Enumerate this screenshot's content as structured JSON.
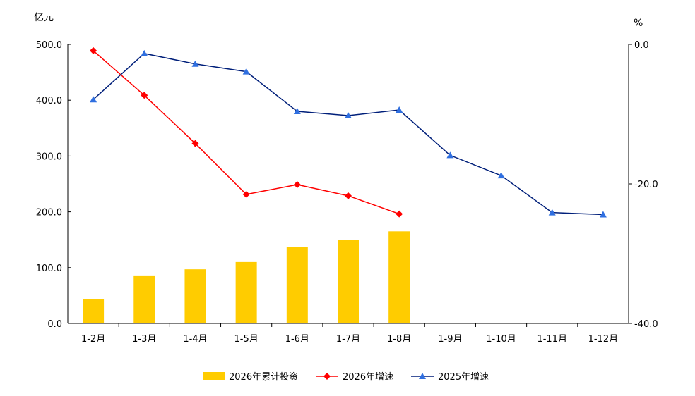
{
  "chart_data": {
    "type": "bar",
    "categories": [
      "1-2月",
      "1-3月",
      "1-4月",
      "1-5月",
      "1-6月",
      "1-7月",
      "1-8月",
      "1-9月",
      "1-10月",
      "1-11月",
      "1-12月"
    ],
    "left_axis": {
      "unit_label": "亿元",
      "ylim": [
        0,
        500
      ],
      "ticks": [
        "0.0",
        "100.0",
        "200.0",
        "300.0",
        "400.0",
        "500.0"
      ],
      "tick_values": [
        0,
        100,
        200,
        300,
        400,
        500
      ]
    },
    "right_axis": {
      "unit_label": "%",
      "ylim": [
        -40,
        0
      ],
      "ticks": [
        "-40.0",
        "-20.0",
        "0.0"
      ],
      "tick_values": [
        -40,
        -20,
        0
      ]
    },
    "series": [
      {
        "name": "2026年累计投资",
        "type": "bar",
        "axis": "left",
        "color": "#FFCC00",
        "values": [
          43,
          86,
          97,
          110,
          137,
          150,
          165,
          null,
          null,
          null,
          null
        ]
      },
      {
        "name": "2026年增速",
        "type": "line",
        "axis": "right",
        "color": "#FF0000",
        "marker": "diamond",
        "values": [
          -0.9,
          -7.3,
          -14.2,
          -21.5,
          -20.1,
          -21.7,
          -24.3,
          null,
          null,
          null,
          null
        ]
      },
      {
        "name": "2025年增速",
        "type": "line",
        "axis": "right",
        "color": "#001F7A",
        "marker": "triangle",
        "values": [
          -7.9,
          -1.3,
          -2.8,
          -3.9,
          -9.6,
          -10.2,
          -9.4,
          -15.9,
          -18.8,
          -24.1,
          -24.4
        ]
      }
    ],
    "grid": false,
    "legend_position": "bottom"
  }
}
